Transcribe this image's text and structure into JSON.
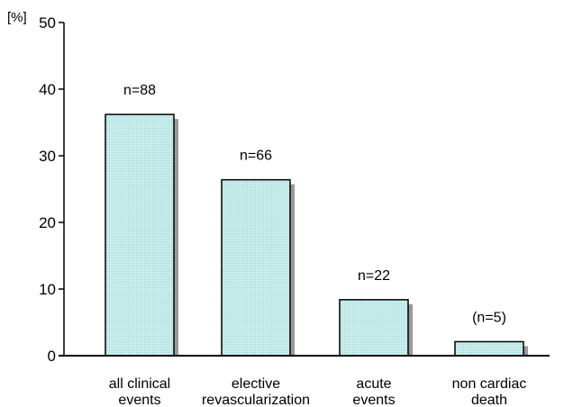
{
  "chart_data": {
    "type": "bar",
    "categories": [
      [
        "all clinical",
        "events"
      ],
      [
        "elective",
        "revascularization"
      ],
      [
        "acute",
        "events"
      ],
      [
        "non cardiac",
        "death"
      ]
    ],
    "values": [
      36.2,
      26.4,
      8.4,
      2.1
    ],
    "data_labels": [
      "n=88",
      "n=66",
      "n=22",
      "(n=5)"
    ],
    "ylabel": "[%]",
    "ylim": [
      0,
      50
    ],
    "yticks": [
      0,
      10,
      20,
      30,
      40,
      50
    ],
    "grid": false,
    "colors": {
      "bar_fill": "#c8ecec",
      "bar_stroke": "#000000",
      "shadow": "#999999",
      "axis": "#000000"
    }
  }
}
